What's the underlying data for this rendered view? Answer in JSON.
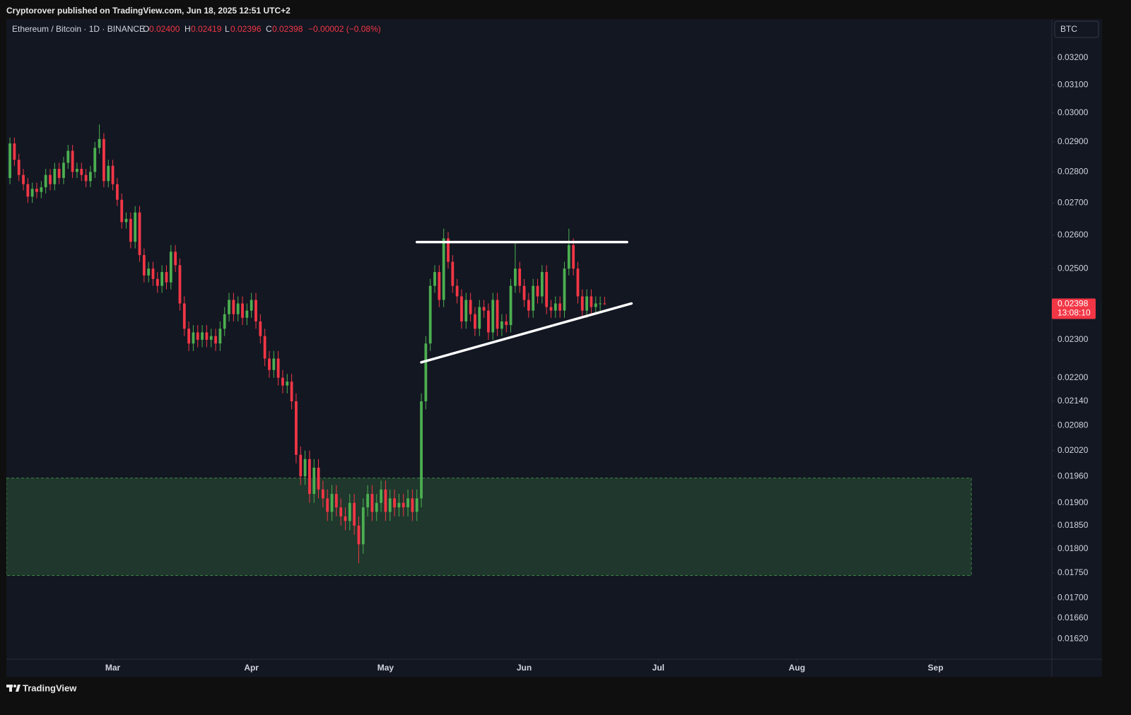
{
  "header": {
    "text": "Cryptorover published on TradingView.com, Jun 18, 2025 12:51 UTC+2"
  },
  "footer": {
    "brand": "TradingView"
  },
  "chart_data": {
    "type": "candlestick",
    "symbol": "Ethereum / Bitcoin · 1D · BINANCE",
    "legend": {
      "o_label": "O",
      "o": "0.02400",
      "h_label": "H",
      "h": "0.02419",
      "l_label": "L",
      "l": "0.02396",
      "c_label": "C",
      "c": "0.02398",
      "change": "−0.00002 (−0.08%)"
    },
    "currency": "BTC",
    "price_tag": {
      "value": 0.02398,
      "label": "0.02398"
    },
    "countdown": "13:08:10",
    "log_scale": true,
    "grid": false,
    "up_color": "#4caf50",
    "down_color": "#f23645",
    "xlim": [
      -0.8,
      233
    ],
    "xticks": [
      {
        "value": 23,
        "label": "Mar"
      },
      {
        "value": 54,
        "label": "Apr"
      },
      {
        "value": 84,
        "label": "May"
      },
      {
        "value": 115,
        "label": "Jun"
      },
      {
        "value": 145,
        "label": "Jul"
      },
      {
        "value": 176,
        "label": "Aug"
      },
      {
        "value": 207,
        "label": "Sep"
      }
    ],
    "ylim": [
      0.01582,
      0.03349
    ],
    "yticks": [
      {
        "value": 0.032,
        "label": "0.03200"
      },
      {
        "value": 0.031,
        "label": "0.03100"
      },
      {
        "value": 0.03,
        "label": "0.03000"
      },
      {
        "value": 0.029,
        "label": "0.02900"
      },
      {
        "value": 0.028,
        "label": "0.02800"
      },
      {
        "value": 0.027,
        "label": "0.02700"
      },
      {
        "value": 0.026,
        "label": "0.02600"
      },
      {
        "value": 0.025,
        "label": "0.02500"
      },
      {
        "value": 0.023,
        "label": "0.02300"
      },
      {
        "value": 0.022,
        "label": "0.02200"
      },
      {
        "value": 0.0214,
        "label": "0.02140"
      },
      {
        "value": 0.0208,
        "label": "0.02080"
      },
      {
        "value": 0.0202,
        "label": "0.02020"
      },
      {
        "value": 0.0196,
        "label": "0.01960"
      },
      {
        "value": 0.019,
        "label": "0.01900"
      },
      {
        "value": 0.0185,
        "label": "0.01850"
      },
      {
        "value": 0.018,
        "label": "0.01800"
      },
      {
        "value": 0.0175,
        "label": "0.01750"
      },
      {
        "value": 0.017,
        "label": "0.01700"
      },
      {
        "value": 0.0166,
        "label": "0.01660"
      },
      {
        "value": 0.0162,
        "label": "0.01620"
      }
    ],
    "ohlc": {
      "open": [
        0.0278,
        0.02895,
        0.0284,
        0.0279,
        0.0276,
        0.0272,
        0.02745,
        0.02735,
        0.0275,
        0.0279,
        0.0276,
        0.0281,
        0.0278,
        0.0283,
        0.0287,
        0.028,
        0.0281,
        0.0279,
        0.0277,
        0.028,
        0.0288,
        0.0291,
        0.0277,
        0.0282,
        0.0276,
        0.0271,
        0.0264,
        0.0265,
        0.0258,
        0.0267,
        0.0254,
        0.0248,
        0.025,
        0.0247,
        0.0245,
        0.0249,
        0.0246,
        0.0255,
        0.0251,
        0.024,
        0.0233,
        0.0229,
        0.0232,
        0.023,
        0.0232,
        0.023,
        0.0231,
        0.0229,
        0.0233,
        0.0237,
        0.0241,
        0.0237,
        0.024,
        0.0236,
        0.0238,
        0.0241,
        0.0235,
        0.0231,
        0.0225,
        0.0222,
        0.0225,
        0.022,
        0.0218,
        0.0219,
        0.0214,
        0.0201,
        0.0196,
        0.02,
        0.0192,
        0.0198,
        0.0193,
        0.0191,
        0.0188,
        0.0192,
        0.0189,
        0.0187,
        0.0186,
        0.019,
        0.0185,
        0.0181,
        0.0189,
        0.0192,
        0.0188,
        0.019,
        0.0193,
        0.0188,
        0.0191,
        0.0189,
        0.019,
        0.0189,
        0.0191,
        0.0188,
        0.0191,
        0.0214,
        0.0229,
        0.0245,
        0.0249,
        0.0241,
        0.0259,
        0.0252,
        0.0245,
        0.0242,
        0.0235,
        0.0241,
        0.0237,
        0.0233,
        0.0239,
        0.0238,
        0.0232,
        0.0241,
        0.0233,
        0.0235,
        0.0234,
        0.0245,
        0.025,
        0.0245,
        0.0241,
        0.0238,
        0.0245,
        0.0242,
        0.0249,
        0.0239,
        0.0238,
        0.024,
        0.0238,
        0.025,
        0.0257,
        0.025,
        0.0242,
        0.0238,
        0.0242,
        0.0239,
        0.024,
        0.024
      ],
      "high": [
        0.02915,
        0.02915,
        0.0286,
        0.0281,
        0.0278,
        0.02765,
        0.02765,
        0.0277,
        0.0281,
        0.0281,
        0.0283,
        0.0283,
        0.0285,
        0.0289,
        0.0289,
        0.0283,
        0.0283,
        0.0281,
        0.0282,
        0.029,
        0.0296,
        0.0293,
        0.0284,
        0.0284,
        0.0278,
        0.0273,
        0.0267,
        0.0267,
        0.0269,
        0.0269,
        0.0256,
        0.0252,
        0.0252,
        0.0249,
        0.0251,
        0.0251,
        0.0257,
        0.0257,
        0.0253,
        0.0242,
        0.0235,
        0.0234,
        0.0234,
        0.0234,
        0.0234,
        0.0233,
        0.0233,
        0.0235,
        0.0239,
        0.0243,
        0.0243,
        0.0242,
        0.0242,
        0.024,
        0.0243,
        0.0243,
        0.0237,
        0.0233,
        0.0227,
        0.0227,
        0.0227,
        0.0222,
        0.0221,
        0.0221,
        0.0216,
        0.0203,
        0.0202,
        0.0202,
        0.02,
        0.02,
        0.0195,
        0.0193,
        0.0194,
        0.0194,
        0.0191,
        0.0189,
        0.0192,
        0.0192,
        0.0187,
        0.0191,
        0.0194,
        0.0194,
        0.0192,
        0.0195,
        0.0195,
        0.0193,
        0.0193,
        0.0192,
        0.0192,
        0.0193,
        0.0193,
        0.0193,
        0.0216,
        0.0231,
        0.0247,
        0.0251,
        0.0251,
        0.0262,
        0.0261,
        0.0254,
        0.0247,
        0.0244,
        0.0243,
        0.0243,
        0.0239,
        0.0241,
        0.0241,
        0.024,
        0.0243,
        0.0243,
        0.0237,
        0.0237,
        0.0247,
        0.0258,
        0.0252,
        0.0247,
        0.0243,
        0.0247,
        0.0247,
        0.0251,
        0.0251,
        0.0241,
        0.0242,
        0.0242,
        0.0252,
        0.0262,
        0.0259,
        0.0252,
        0.0244,
        0.0244,
        0.0244,
        0.0242,
        0.0242,
        0.02419
      ],
      "low": [
        0.0276,
        0.0282,
        0.0277,
        0.0274,
        0.027,
        0.027,
        0.02715,
        0.02715,
        0.0273,
        0.0274,
        0.0274,
        0.0276,
        0.0276,
        0.0281,
        0.0278,
        0.0278,
        0.0277,
        0.0275,
        0.0275,
        0.0278,
        0.0286,
        0.0275,
        0.0275,
        0.0274,
        0.0269,
        0.0262,
        0.0262,
        0.0256,
        0.0256,
        0.0252,
        0.0246,
        0.0246,
        0.0245,
        0.0243,
        0.0243,
        0.0244,
        0.0244,
        0.0249,
        0.0238,
        0.0231,
        0.0227,
        0.0227,
        0.0228,
        0.0228,
        0.0228,
        0.0228,
        0.0227,
        0.0227,
        0.0231,
        0.0235,
        0.0235,
        0.0235,
        0.0234,
        0.0234,
        0.0236,
        0.0233,
        0.0229,
        0.0223,
        0.022,
        0.022,
        0.0218,
        0.0216,
        0.0216,
        0.0212,
        0.0199,
        0.0194,
        0.0194,
        0.019,
        0.019,
        0.0191,
        0.0189,
        0.0186,
        0.0186,
        0.0187,
        0.0185,
        0.0184,
        0.0184,
        0.0183,
        0.0177,
        0.0179,
        0.0187,
        0.0186,
        0.0186,
        0.0188,
        0.0186,
        0.0186,
        0.0187,
        0.0187,
        0.0187,
        0.0187,
        0.0186,
        0.0186,
        0.0189,
        0.0212,
        0.0227,
        0.0243,
        0.0239,
        0.0239,
        0.025,
        0.0243,
        0.024,
        0.0233,
        0.0233,
        0.0235,
        0.0231,
        0.0231,
        0.0236,
        0.023,
        0.023,
        0.0231,
        0.0231,
        0.0232,
        0.0232,
        0.0243,
        0.0243,
        0.0239,
        0.0236,
        0.0236,
        0.024,
        0.024,
        0.0237,
        0.0236,
        0.0236,
        0.0236,
        0.0236,
        0.0248,
        0.0248,
        0.024,
        0.0236,
        0.0236,
        0.0237,
        0.0237,
        0.0238,
        0.02396
      ],
      "close": [
        0.02895,
        0.0284,
        0.0279,
        0.0276,
        0.0272,
        0.02745,
        0.02735,
        0.0275,
        0.0279,
        0.0276,
        0.0281,
        0.0278,
        0.0283,
        0.0287,
        0.028,
        0.0281,
        0.0279,
        0.0277,
        0.028,
        0.0288,
        0.0291,
        0.0277,
        0.0282,
        0.0276,
        0.0271,
        0.0264,
        0.0265,
        0.0258,
        0.0267,
        0.0254,
        0.0248,
        0.025,
        0.0247,
        0.0245,
        0.0249,
        0.0246,
        0.0255,
        0.0251,
        0.024,
        0.0233,
        0.0229,
        0.0232,
        0.023,
        0.0232,
        0.023,
        0.0231,
        0.0229,
        0.0233,
        0.0237,
        0.0241,
        0.0237,
        0.024,
        0.0236,
        0.0238,
        0.0241,
        0.0235,
        0.0231,
        0.0225,
        0.0222,
        0.0225,
        0.022,
        0.0218,
        0.0219,
        0.0214,
        0.0201,
        0.0196,
        0.02,
        0.0192,
        0.0198,
        0.0193,
        0.0191,
        0.0188,
        0.0192,
        0.0189,
        0.0187,
        0.0186,
        0.019,
        0.0185,
        0.0181,
        0.0189,
        0.0192,
        0.0188,
        0.019,
        0.0193,
        0.0188,
        0.0191,
        0.0189,
        0.019,
        0.0189,
        0.0191,
        0.0188,
        0.0191,
        0.0214,
        0.0229,
        0.0245,
        0.0249,
        0.0241,
        0.0259,
        0.0252,
        0.0245,
        0.0242,
        0.0235,
        0.0241,
        0.0237,
        0.0233,
        0.0239,
        0.0238,
        0.0232,
        0.0241,
        0.0233,
        0.0235,
        0.0234,
        0.0245,
        0.025,
        0.0245,
        0.0241,
        0.0238,
        0.0245,
        0.0242,
        0.0249,
        0.0239,
        0.0238,
        0.024,
        0.0238,
        0.025,
        0.0257,
        0.025,
        0.0242,
        0.0238,
        0.0242,
        0.0239,
        0.024,
        0.024,
        0.02398
      ]
    },
    "zone": {
      "color": "#4caf50",
      "x": [
        -0.8,
        215
      ],
      "y": [
        0.01745,
        0.01956
      ]
    },
    "lines": [
      {
        "color": "#ffffff",
        "x": [
          91,
          138
        ],
        "y": [
          0.02579,
          0.02579
        ]
      },
      {
        "color": "#ffffff",
        "x": [
          92,
          139
        ],
        "y": [
          0.0224,
          0.024
        ]
      }
    ]
  }
}
